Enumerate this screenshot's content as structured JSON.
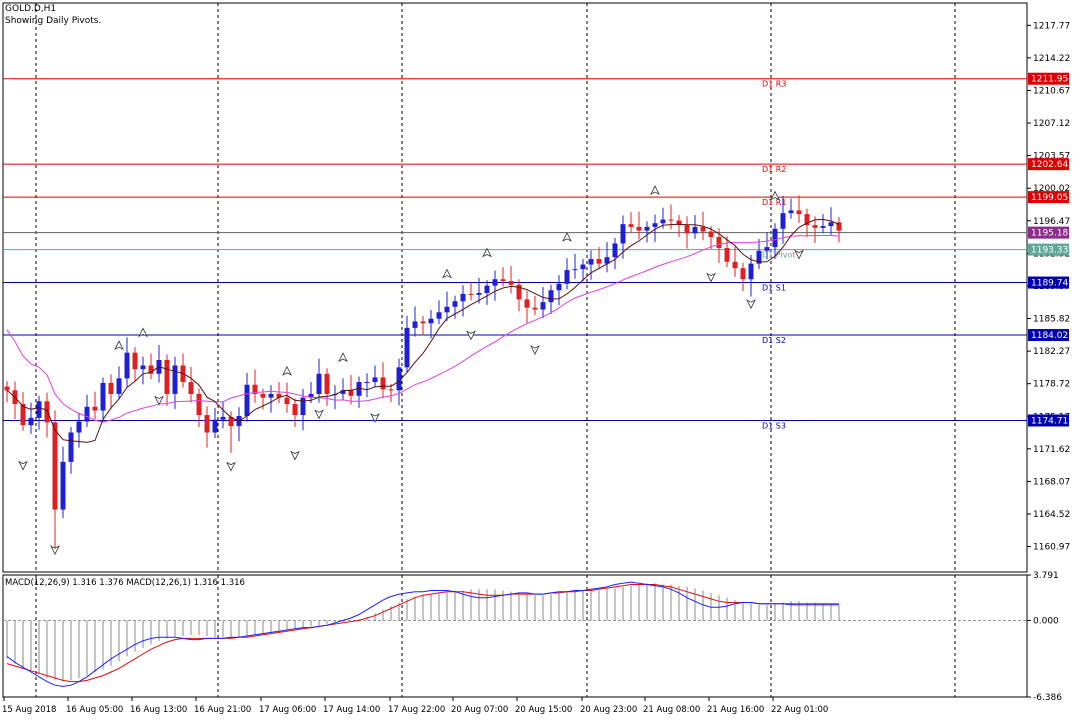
{
  "window": {
    "symbol_line": "GOLD.D,H1",
    "note": "Showing Daily Pivots."
  },
  "colors": {
    "background": "#ffffff",
    "bull": "#1f1fd8",
    "bear": "#e02020",
    "resistance": "#dd0000",
    "support": "#0000aa",
    "pivot": "#5fa89a",
    "ma_fast": "#5a0f0f",
    "ma_slow": "#e040e0",
    "macd_hist": "#888888",
    "macd_main": "#2020ff",
    "macd_signal": "#dd1111",
    "grid": "#000000"
  },
  "chart_data": [
    {
      "type": "candlestick",
      "symbol": "GOLD.D",
      "timeframe": "H1",
      "ylim": [
        1158.2,
        1220.2
      ],
      "y_ticks": [
        "1217.77",
        "1214.22",
        "1210.67",
        "1207.12",
        "1203.57",
        "1200.02",
        "1196.47",
        "1192.92",
        "1189.37",
        "1185.82",
        "1182.27",
        "1178.72",
        "1175.17",
        "1171.62",
        "1168.07",
        "1164.52",
        "1160.97"
      ],
      "x_ticks": [
        "15 Aug 2018",
        "16 Aug 05:00",
        "16 Aug 13:00",
        "16 Aug 21:00",
        "17 Aug 06:00",
        "17 Aug 14:00",
        "17 Aug 22:00",
        "20 Aug 07:00",
        "20 Aug 15:00",
        "20 Aug 23:00",
        "21 Aug 08:00",
        "21 Aug 16:00",
        "22 Aug 01:00"
      ],
      "pivots": [
        {
          "label": "D1 R3",
          "value": 1211.95,
          "tag": "1211.95",
          "kind": "resistance"
        },
        {
          "label": "D1 R2",
          "value": 1202.64,
          "tag": "1202.64",
          "kind": "resistance"
        },
        {
          "label": "D1 R1",
          "value": 1199.05,
          "tag": "1199.05",
          "kind": "resistance"
        },
        {
          "label": "D1 Pivot",
          "value": 1193.33,
          "tag": "1193.33",
          "kind": "pivot"
        },
        {
          "label": "D1 S1",
          "value": 1189.74,
          "tag": "1189.74",
          "kind": "support"
        },
        {
          "label": "D1 S2",
          "value": 1184.02,
          "tag": "1184.02",
          "kind": "support"
        },
        {
          "label": "D1 S3",
          "value": 1174.71,
          "tag": "1174.71",
          "kind": "support"
        }
      ],
      "current_price": {
        "value": 1195.18,
        "tag": "1195.18"
      },
      "series_close": [
        1178.0,
        1176.5,
        1174.2,
        1175.0,
        1176.8,
        1174.5,
        1165.0,
        1170.2,
        1173.4,
        1174.6,
        1176.2,
        1175.8,
        1178.8,
        1177.6,
        1179.3,
        1182.1,
        1180.3,
        1180.7,
        1179.8,
        1181.3,
        1177.6,
        1180.7,
        1178.9,
        1177.6,
        1175.3,
        1173.4,
        1174.8,
        1175.1,
        1174.1,
        1175.2,
        1178.6,
        1177.6,
        1177.2,
        1177.6,
        1177.2,
        1176.5,
        1175.3,
        1177.2,
        1177.6,
        1179.8,
        1177.6,
        1177.6,
        1178.0,
        1177.4,
        1178.9,
        1178.9,
        1179.4,
        1178.1,
        1178.0,
        1180.5,
        1184.8,
        1185.5,
        1185.3,
        1185.8,
        1186.5,
        1187.1,
        1187.7,
        1188.5,
        1188.4,
        1188.6,
        1189.4,
        1190.1,
        1189.9,
        1189.5,
        1187.9,
        1187.0,
        1186.8,
        1187.6,
        1188.9,
        1189.6,
        1191.1,
        1191.2,
        1191.7,
        1192.3,
        1191.8,
        1192.5,
        1194.0,
        1196.1,
        1195.8,
        1195.4,
        1195.8,
        1196.2,
        1196.6,
        1196.5,
        1196.0,
        1195.1,
        1195.8,
        1195.3,
        1194.7,
        1193.5,
        1192.0,
        1191.3,
        1190.1,
        1191.8,
        1193.2,
        1193.6,
        1195.6,
        1197.3,
        1197.6,
        1197.2,
        1196.0,
        1195.7,
        1195.9,
        1196.3,
        1195.4
      ]
    },
    {
      "type": "line",
      "title": "MACD(12,26,9) 1.316 1.376 MACD(12,26,1) 1.316 1.316",
      "ylim": [
        -6.386,
        3.791
      ],
      "y_ticks": [
        "3.791",
        "0.000",
        "-6.386"
      ],
      "series": [
        {
          "name": "MACD histogram",
          "values": [
            -3.2,
            -3.6,
            -3.9,
            -4.2,
            -4.5,
            -4.8,
            -5.0,
            -5.1,
            -5.0,
            -4.8,
            -4.6,
            -4.3,
            -4.1,
            -3.8,
            -3.4,
            -3.0,
            -2.6,
            -2.3,
            -2.0,
            -1.7,
            -1.5,
            -1.4,
            -1.3,
            -1.2,
            -1.2,
            -1.3,
            -1.4,
            -1.4,
            -1.4,
            -1.4,
            -1.3,
            -1.2,
            -1.1,
            -1.0,
            -0.9,
            -0.8,
            -0.7,
            -0.6,
            -0.5,
            -0.4,
            -0.3,
            -0.2,
            -0.1,
            0.0,
            0.1,
            0.3,
            0.6,
            0.9,
            1.2,
            1.5,
            1.8,
            2.0,
            2.1,
            2.2,
            2.3,
            2.4,
            2.5,
            2.5,
            2.6,
            2.6,
            2.6,
            2.6,
            2.5,
            2.4,
            2.3,
            2.2,
            2.1,
            2.1,
            2.2,
            2.3,
            2.4,
            2.5,
            2.5,
            2.5,
            2.5,
            2.6,
            2.7,
            2.8,
            2.9,
            3.0,
            3.1,
            3.1,
            3.0,
            3.0,
            2.9,
            2.8,
            2.7,
            2.5,
            2.3,
            2.1,
            1.9,
            1.7,
            1.5,
            1.4,
            1.3,
            1.3,
            1.4,
            1.5,
            1.6,
            1.6,
            1.5,
            1.5,
            1.4,
            1.4,
            1.3
          ]
        },
        {
          "name": "MACD",
          "values": [
            -3.0,
            -3.5,
            -3.9,
            -4.3,
            -4.7,
            -5.1,
            -5.4,
            -5.5,
            -5.4,
            -5.1,
            -4.7,
            -4.2,
            -3.7,
            -3.2,
            -2.8,
            -2.4,
            -2.0,
            -1.7,
            -1.5,
            -1.4,
            -1.4,
            -1.4,
            -1.5,
            -1.6,
            -1.6,
            -1.5,
            -1.5,
            -1.5,
            -1.4,
            -1.4,
            -1.3,
            -1.2,
            -1.1,
            -1.0,
            -0.9,
            -0.8,
            -0.7,
            -0.6,
            -0.6,
            -0.5,
            -0.4,
            -0.2,
            0.0,
            0.2,
            0.5,
            0.9,
            1.3,
            1.7,
            2.0,
            2.2,
            2.3,
            2.4,
            2.4,
            2.5,
            2.5,
            2.5,
            2.4,
            2.2,
            2.0,
            1.9,
            1.9,
            2.0,
            2.1,
            2.2,
            2.3,
            2.3,
            2.2,
            2.2,
            2.3,
            2.4,
            2.4,
            2.5,
            2.5,
            2.6,
            2.7,
            2.8,
            3.0,
            3.1,
            3.2,
            3.1,
            3.0,
            2.9,
            2.8,
            2.6,
            2.3,
            1.9,
            1.6,
            1.3,
            1.1,
            1.1,
            1.2,
            1.4,
            1.5,
            1.5,
            1.4,
            1.4,
            1.4,
            1.4,
            1.3,
            1.3,
            1.3,
            1.3,
            1.3,
            1.3,
            1.3
          ]
        },
        {
          "name": "Signal",
          "values": [
            -3.6,
            -3.8,
            -4.0,
            -4.2,
            -4.4,
            -4.6,
            -4.8,
            -5.0,
            -5.1,
            -5.1,
            -5.0,
            -4.8,
            -4.6,
            -4.3,
            -4.0,
            -3.6,
            -3.2,
            -2.8,
            -2.4,
            -2.1,
            -1.8,
            -1.6,
            -1.5,
            -1.5,
            -1.5,
            -1.5,
            -1.5,
            -1.5,
            -1.5,
            -1.4,
            -1.4,
            -1.3,
            -1.2,
            -1.1,
            -1.0,
            -0.9,
            -0.8,
            -0.7,
            -0.6,
            -0.5,
            -0.4,
            -0.3,
            -0.2,
            -0.1,
            0.0,
            0.2,
            0.4,
            0.7,
            1.0,
            1.3,
            1.6,
            1.9,
            2.1,
            2.2,
            2.3,
            2.4,
            2.4,
            2.4,
            2.3,
            2.2,
            2.1,
            2.1,
            2.1,
            2.2,
            2.2,
            2.2,
            2.2,
            2.2,
            2.3,
            2.3,
            2.4,
            2.4,
            2.5,
            2.5,
            2.6,
            2.7,
            2.8,
            2.9,
            3.0,
            3.0,
            3.0,
            3.0,
            2.9,
            2.8,
            2.6,
            2.4,
            2.2,
            2.0,
            1.8,
            1.6,
            1.5,
            1.5,
            1.5,
            1.5,
            1.4,
            1.4,
            1.4,
            1.4,
            1.4,
            1.4,
            1.4,
            1.4,
            1.4,
            1.4,
            1.4
          ]
        }
      ]
    }
  ]
}
